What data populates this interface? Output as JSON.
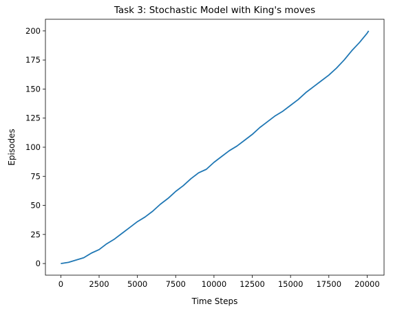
{
  "chart_data": {
    "type": "line",
    "title": "Task 3: Stochastic Model with King's moves",
    "xlabel": "Time Steps",
    "ylabel": "Episodes",
    "x": [
      0,
      500,
      1000,
      1500,
      2000,
      2500,
      3000,
      3500,
      4000,
      4500,
      5000,
      5500,
      6000,
      6500,
      7000,
      7500,
      8000,
      8500,
      9000,
      9500,
      10000,
      10500,
      11000,
      11500,
      12000,
      12500,
      13000,
      13500,
      14000,
      14500,
      15000,
      15500,
      16000,
      16500,
      17000,
      17500,
      18000,
      18500,
      19000,
      19500,
      20000,
      20100
    ],
    "series": [
      {
        "name": "Episodes",
        "color": "#1f77b4",
        "values": [
          0,
          1,
          3,
          5,
          9,
          12,
          17,
          21,
          26,
          31,
          36,
          40,
          45,
          51,
          56,
          62,
          67,
          73,
          78,
          81,
          87,
          92,
          97,
          101,
          106,
          111,
          117,
          122,
          127,
          131,
          136,
          141,
          147,
          152,
          157,
          162,
          168,
          175,
          183,
          190,
          198,
          200
        ]
      }
    ],
    "xlim": [
      -1005,
      21105
    ],
    "ylim": [
      -10,
      210
    ],
    "xticks": [
      0,
      2500,
      5000,
      7500,
      10000,
      12500,
      15000,
      17500,
      20000
    ],
    "yticks": [
      0,
      25,
      50,
      75,
      100,
      125,
      150,
      175,
      200
    ]
  }
}
